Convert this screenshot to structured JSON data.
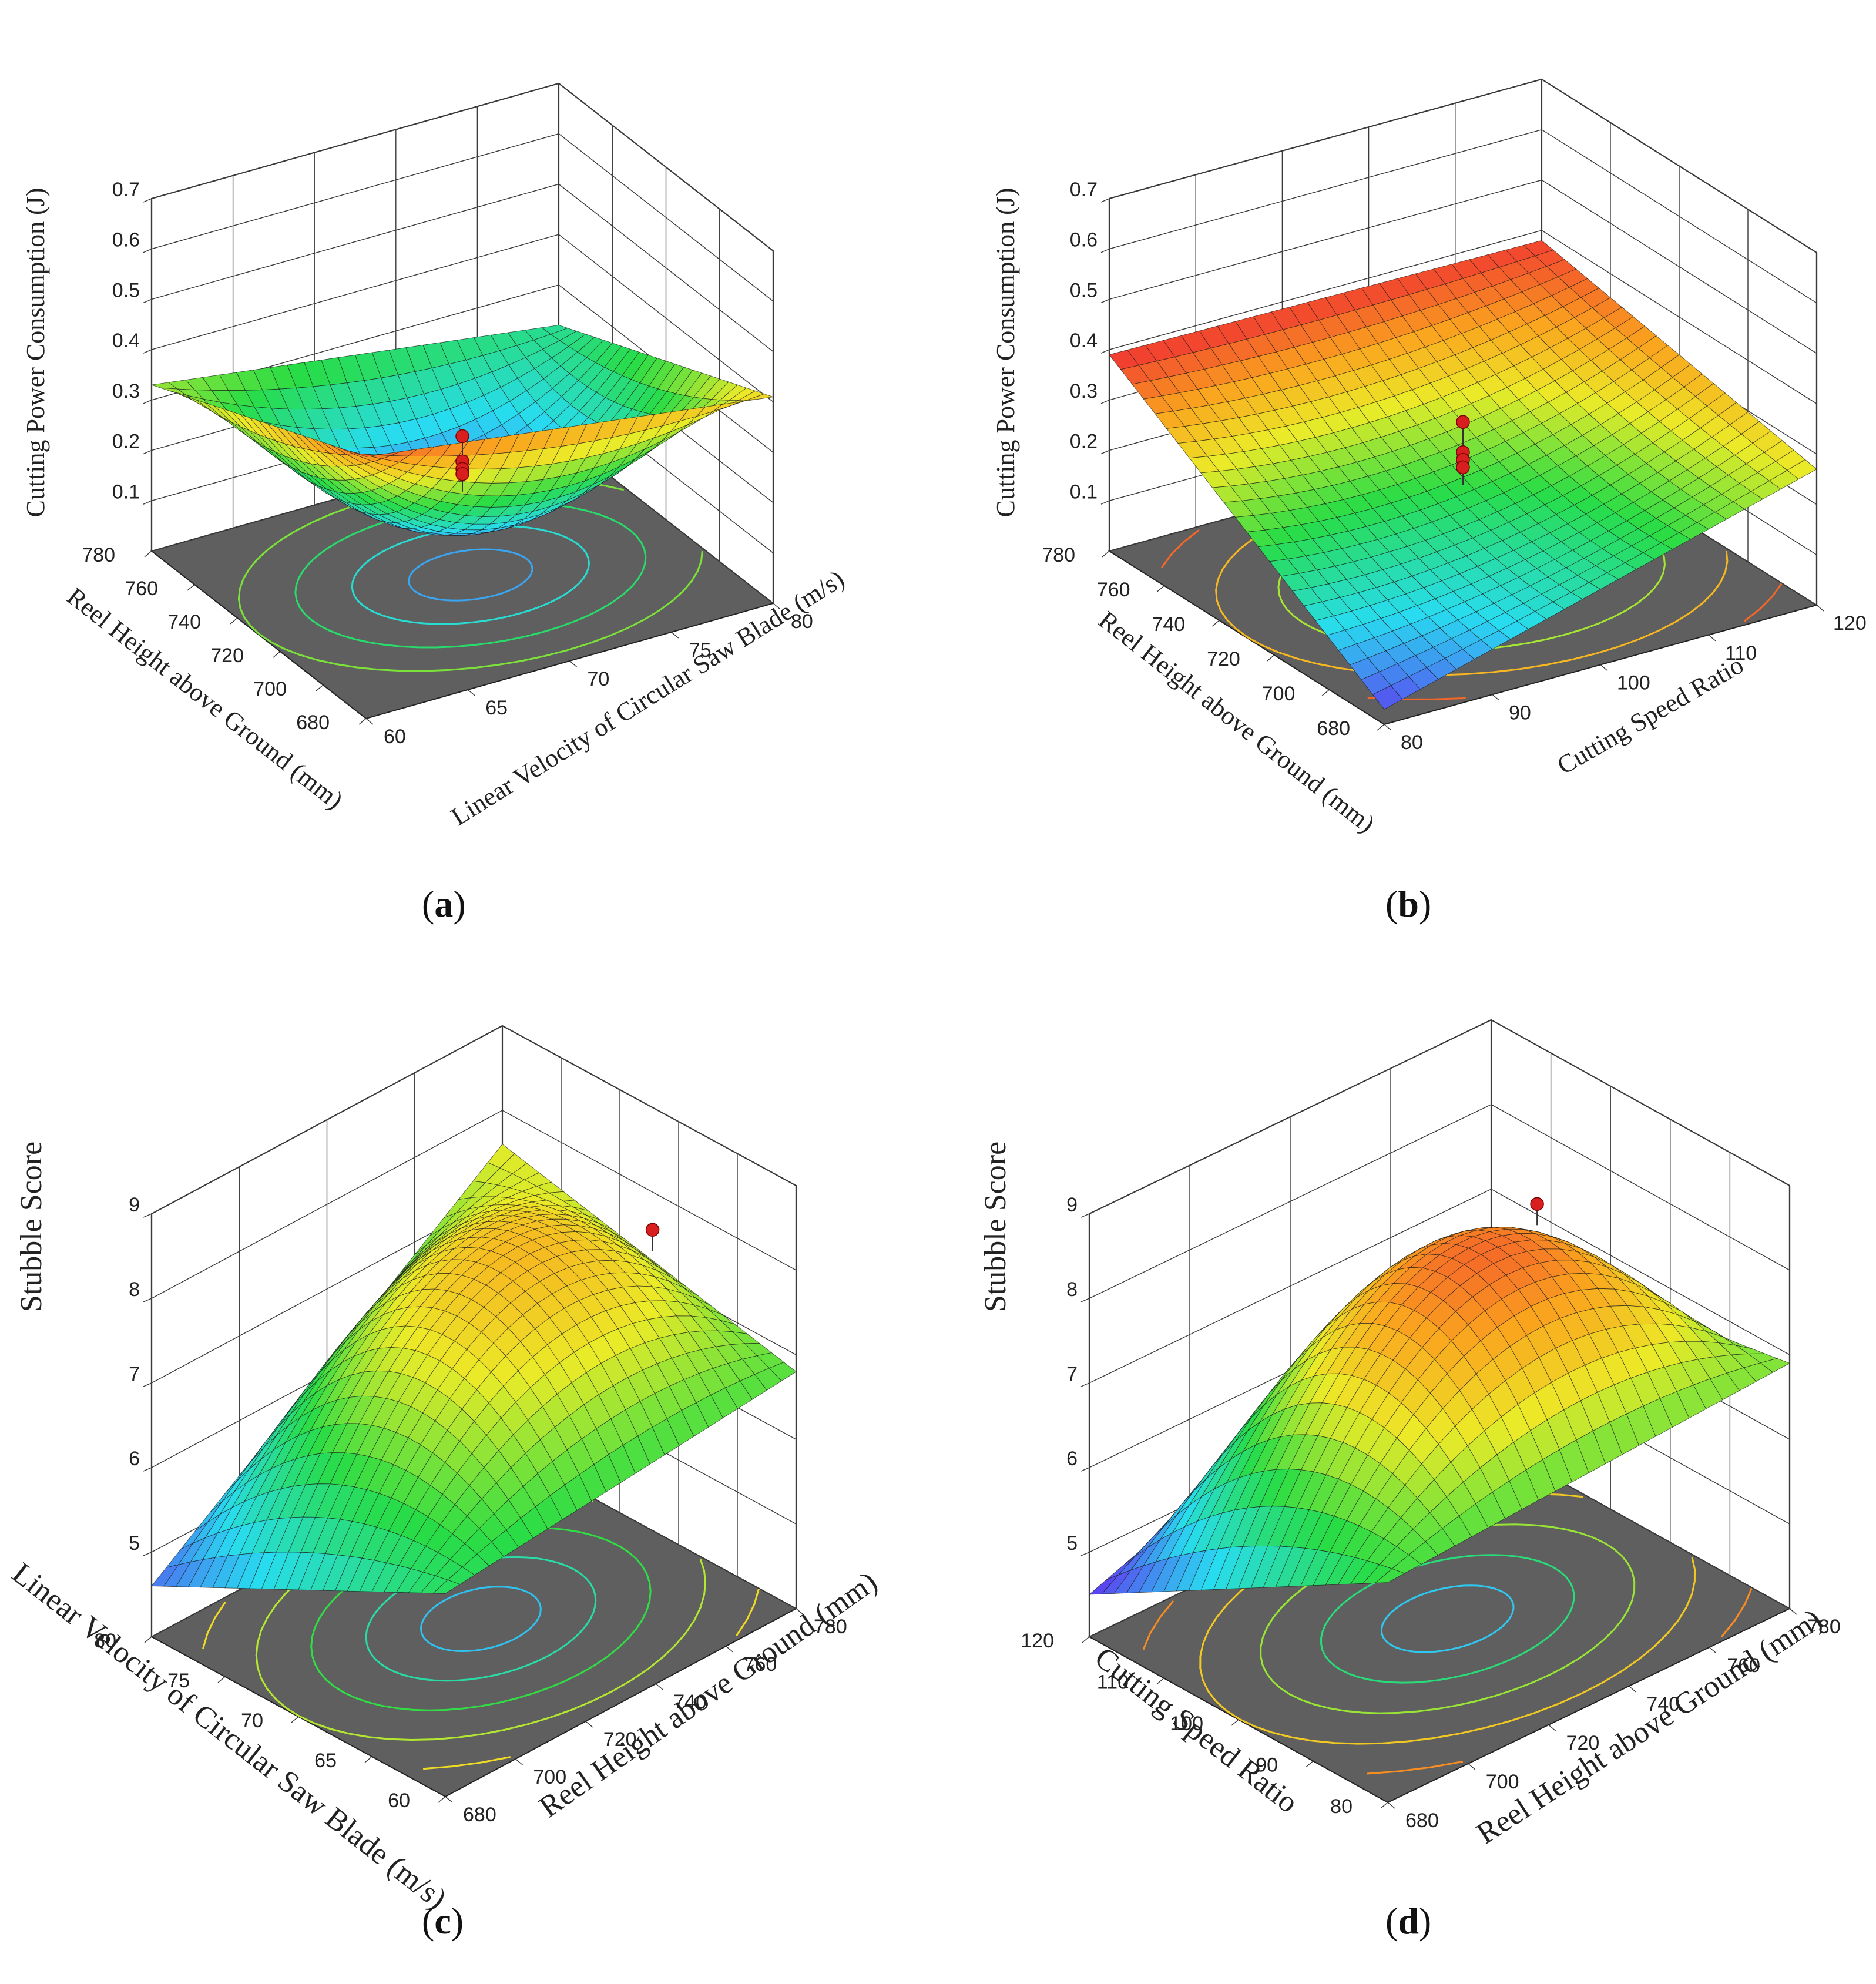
{
  "colors": {
    "floor": "#5f5f5f",
    "grid": "#3a3a3a",
    "mesh": "#1a1a1a",
    "marker": "#d81e1e"
  },
  "panels": [
    {
      "id": "a",
      "label": "(",
      "letter": "a",
      "close": ")"
    },
    {
      "id": "b",
      "label": "(",
      "letter": "b",
      "close": ")"
    },
    {
      "id": "c",
      "label": "(",
      "letter": "c",
      "close": ")"
    },
    {
      "id": "d",
      "label": "(",
      "letter": "d",
      "close": ")"
    }
  ],
  "chart_data": [
    {
      "id": "a",
      "type": "surface3d",
      "zlabel": "Cutting Power Consumption (J)",
      "xlabel": "Linear Velocity of Circular Saw Blade (m/s)",
      "ylabel": "Reel Height above Ground (mm)",
      "x_ticks": [
        "60",
        "65",
        "70",
        "75",
        "80"
      ],
      "y_ticks": [
        "680",
        "700",
        "720",
        "740",
        "760",
        "780"
      ],
      "z_ticks": [
        "0.1",
        "0.2",
        "0.3",
        "0.4",
        "0.5",
        "0.6",
        "0.7"
      ],
      "xlim": [
        60,
        80
      ],
      "ylim": [
        680,
        780
      ],
      "zlim": [
        0,
        0.7
      ],
      "z_corners": {
        "x_min_y_min": 0.52,
        "x_max_y_min": 0.41,
        "x_min_y_max": 0.33,
        "x_max_y_max": 0.22
      },
      "z_center": 0.09,
      "color_range": [
        0.05,
        0.55
      ],
      "design_points": [
        {
          "x": 70,
          "y": 730,
          "z": [
            0.28,
            0.23,
            0.215,
            0.205
          ]
        }
      ],
      "contour_levels": [
        0.12,
        0.18,
        0.25,
        0.32
      ]
    },
    {
      "id": "b",
      "type": "surface3d",
      "zlabel": "Cutting Power Consumption (J)",
      "xlabel": "Cutting Speed Ratio",
      "ylabel": "Reel Height above Ground (mm)",
      "x_ticks": [
        "80",
        "90",
        "100",
        "110",
        "120"
      ],
      "y_ticks": [
        "680",
        "700",
        "720",
        "740",
        "760",
        "780"
      ],
      "z_ticks": [
        "0.1",
        "0.2",
        "0.3",
        "0.4",
        "0.5",
        "0.6",
        "0.7"
      ],
      "xlim": [
        80,
        120
      ],
      "ylim": [
        680,
        780
      ],
      "zlim": [
        0,
        0.7
      ],
      "z_corners": {
        "x_min_y_min": 0.03,
        "x_max_y_min": 0.27,
        "x_min_y_max": 0.39,
        "x_max_y_max": 0.38
      },
      "z_center": 0.2,
      "color_range": [
        0.03,
        0.39
      ],
      "design_points": [
        {
          "x": 100,
          "y": 730,
          "z": [
            0.31,
            0.25,
            0.235,
            0.22
          ]
        }
      ],
      "contour_levels": [
        0.1,
        0.17,
        0.24,
        0.31,
        0.36
      ]
    },
    {
      "id": "c",
      "type": "surface3d",
      "zlabel": "Stubble Score",
      "xlabel": "Reel Height above Ground (mm)",
      "ylabel": "Linear Velocity of Circular Saw Blade (m/s)",
      "x_ticks": [
        "680",
        "700",
        "720",
        "740",
        "760",
        "780"
      ],
      "y_ticks": [
        "60",
        "65",
        "70",
        "75",
        "80"
      ],
      "z_ticks": [
        "5",
        "6",
        "7",
        "8",
        "9"
      ],
      "xlim": [
        680,
        780
      ],
      "ylim": [
        60,
        80
      ],
      "zlim": [
        4,
        9
      ],
      "z_corners": {
        "x_min_y_min": 6.4,
        "x_max_y_min": 6.8,
        "x_min_y_max": 4.6,
        "x_max_y_max": 7.6
      },
      "z_peak": 8.25,
      "color_range": [
        4.3,
        9.3
      ],
      "design_points": [
        {
          "x": 760,
          "y": 65,
          "z": [
            8.45
          ]
        }
      ],
      "contour_levels": [
        5.2,
        5.9,
        6.6,
        7.3,
        7.8
      ]
    },
    {
      "id": "d",
      "type": "surface3d",
      "zlabel": "Stubble Score",
      "xlabel": "Reel Height above Ground (mm)",
      "ylabel": "Cutting Speed Ratio",
      "x_ticks": [
        "680",
        "700",
        "720",
        "740",
        "760",
        "780"
      ],
      "y_ticks": [
        "80",
        "90",
        "100",
        "110",
        "120"
      ],
      "z_ticks": [
        "5",
        "6",
        "7",
        "8",
        "9"
      ],
      "xlim": [
        680,
        780
      ],
      "ylim": [
        80,
        120
      ],
      "zlim": [
        4,
        9
      ],
      "z_corners": {
        "x_min_y_min": 6.6,
        "x_max_y_min": 6.9,
        "x_min_y_max": 4.5,
        "x_max_y_max": 6.3
      },
      "z_peak": 8.6,
      "color_range": [
        4.6,
        8.8
      ],
      "design_points": [
        {
          "x": 745,
          "y": 95,
          "z": [
            8.85
          ]
        }
      ],
      "contour_levels": [
        5.4,
        6.2,
        7.0,
        7.7,
        8.2
      ]
    }
  ]
}
